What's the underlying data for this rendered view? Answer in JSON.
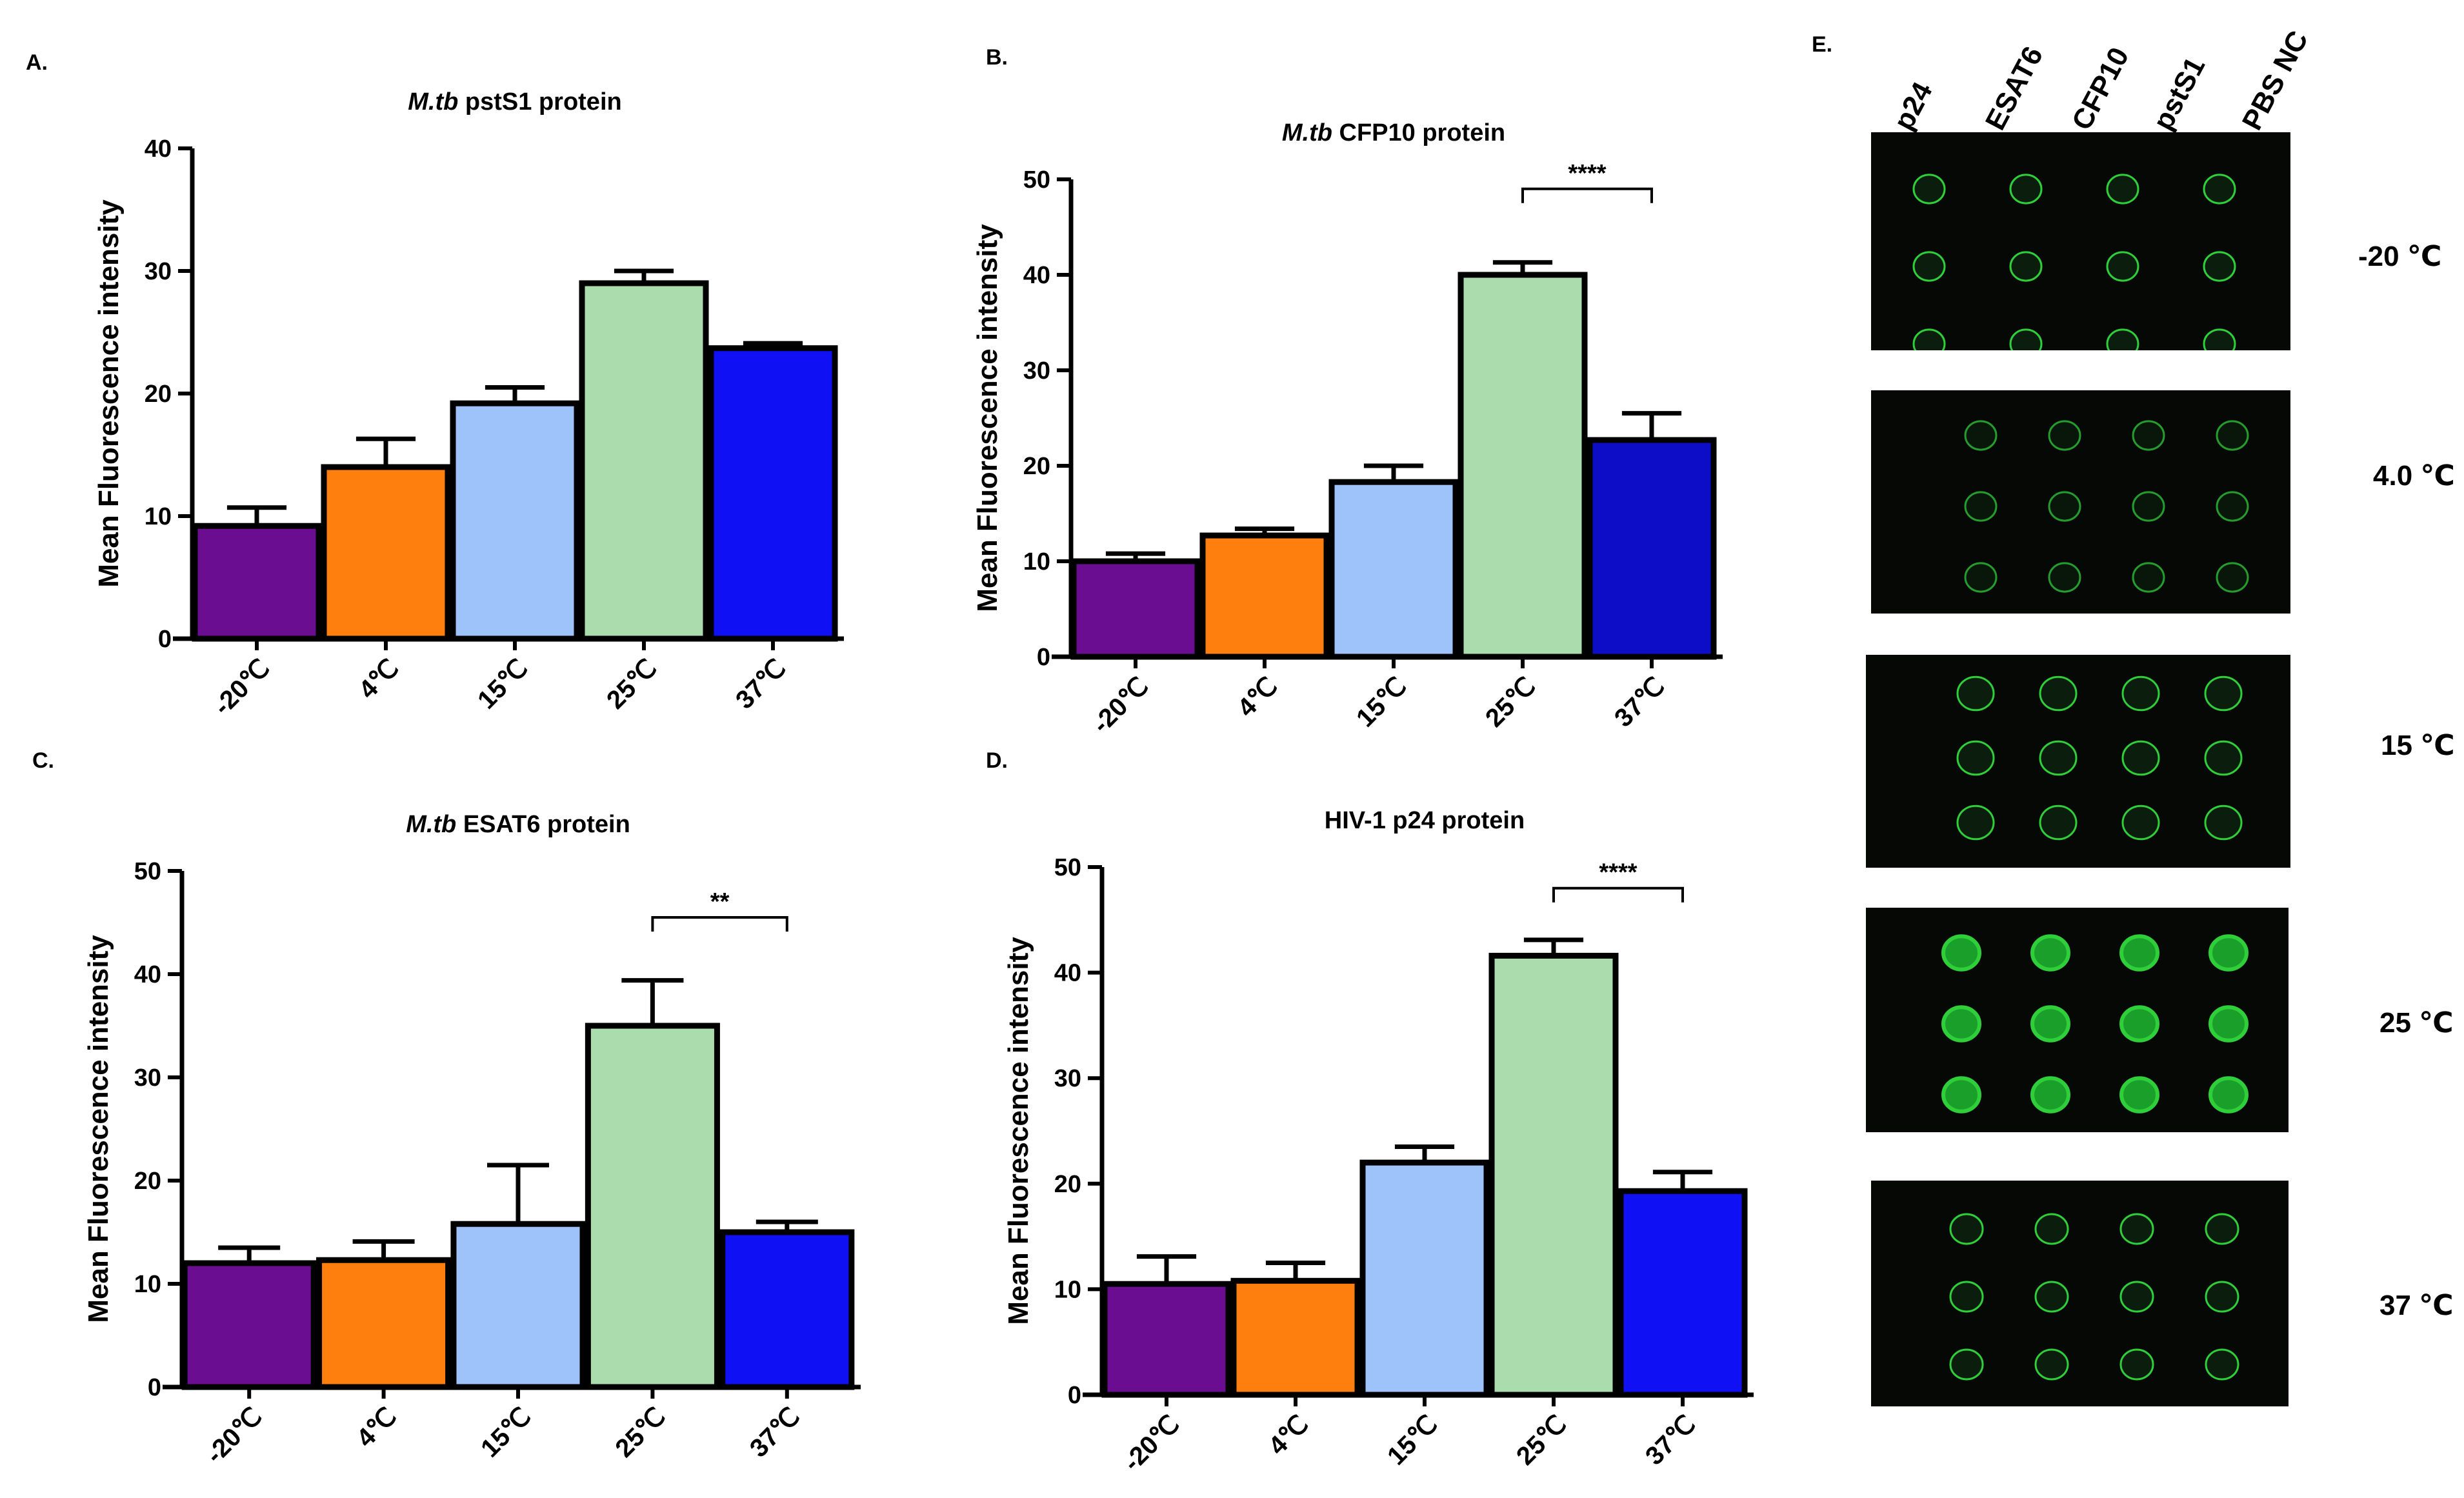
{
  "panels": {
    "a": "A.",
    "b": "B.",
    "c": "C.",
    "d": "D.",
    "e": "E."
  },
  "chart_data": [
    {
      "id": "A",
      "type": "bar",
      "title_italic": "M.tb",
      "title_rest": " pstS1 protein",
      "ylabel": "Mean Fluorescence intensity",
      "xlabel": "",
      "ylim": [
        0,
        40
      ],
      "yticks": [
        0,
        10,
        20,
        30,
        40
      ],
      "categories": [
        "-20℃",
        "4℃",
        "15℃",
        "25℃",
        "37℃"
      ],
      "values": [
        9.2,
        14,
        19.2,
        29,
        23.7
      ],
      "errors": [
        1.5,
        2.3,
        1.3,
        1.0,
        0.4
      ],
      "colors": [
        "#6a0d91",
        "#ff7f0e",
        "#9ec3fb",
        "#aadcae",
        "#1010f5"
      ],
      "significance": null
    },
    {
      "id": "B",
      "type": "bar",
      "title_italic": "M.tb",
      "title_rest": " CFP10 protein",
      "ylabel": "Mean Fluorescence intensity",
      "xlabel": "",
      "ylim": [
        0,
        50
      ],
      "yticks": [
        0,
        10,
        20,
        30,
        40,
        50
      ],
      "categories": [
        "-20℃",
        "4℃",
        "15℃",
        "25℃",
        "37℃"
      ],
      "values": [
        10,
        12.7,
        18.3,
        40,
        22.7
      ],
      "errors": [
        0.8,
        0.7,
        1.7,
        1.3,
        2.8
      ],
      "colors": [
        "#6a0d91",
        "#ff7f0e",
        "#9ec3fb",
        "#aadcae",
        "#0d0dc8"
      ],
      "significance": {
        "from": 3,
        "to": 4,
        "label": "****",
        "y": 49
      }
    },
    {
      "id": "C",
      "type": "bar",
      "title_italic": "M.tb",
      "title_rest": " ESAT6 protein",
      "ylabel": "Mean Fluorescence intensity",
      "xlabel": "",
      "ylim": [
        0,
        50
      ],
      "yticks": [
        0,
        10,
        20,
        30,
        40,
        50
      ],
      "categories": [
        "-20℃",
        "4℃",
        "15℃",
        "25℃",
        "37℃"
      ],
      "values": [
        12,
        12.3,
        15.8,
        35,
        15
      ],
      "errors": [
        1.5,
        1.8,
        5.7,
        4.4,
        1.0
      ],
      "colors": [
        "#6a0d91",
        "#ff7f0e",
        "#9ec3fb",
        "#aadcae",
        "#1010f5"
      ],
      "significance": {
        "from": 3,
        "to": 4,
        "label": "**",
        "y": 45.5
      }
    },
    {
      "id": "D",
      "type": "bar",
      "title_italic": "",
      "title_rest": "HIV-1 p24 protein",
      "ylabel": "Mean Fluorescence intensity",
      "xlabel": "",
      "ylim": [
        0,
        50
      ],
      "yticks": [
        0,
        10,
        20,
        30,
        40,
        50
      ],
      "categories": [
        "-20℃",
        "4℃",
        "15℃",
        "25℃",
        "37℃"
      ],
      "values": [
        10.5,
        10.8,
        22,
        41.6,
        19.3
      ],
      "errors": [
        2.6,
        1.7,
        1.5,
        1.5,
        1.8
      ],
      "colors": [
        "#6a0d91",
        "#ff7f0e",
        "#9ec3fb",
        "#aadcae",
        "#1010f5"
      ],
      "significance": {
        "from": 3,
        "to": 4,
        "label": "****",
        "y": 48
      }
    }
  ],
  "arrays": {
    "columns": [
      "p24",
      "ESAT6",
      "CFP10",
      "pstS1",
      "PBS NC"
    ],
    "temperatures": [
      "-20 ℃",
      "4.0 ℃",
      "15 ℃",
      "25 ℃",
      "37 ℃"
    ],
    "spot_color": "#2fcf3a"
  }
}
